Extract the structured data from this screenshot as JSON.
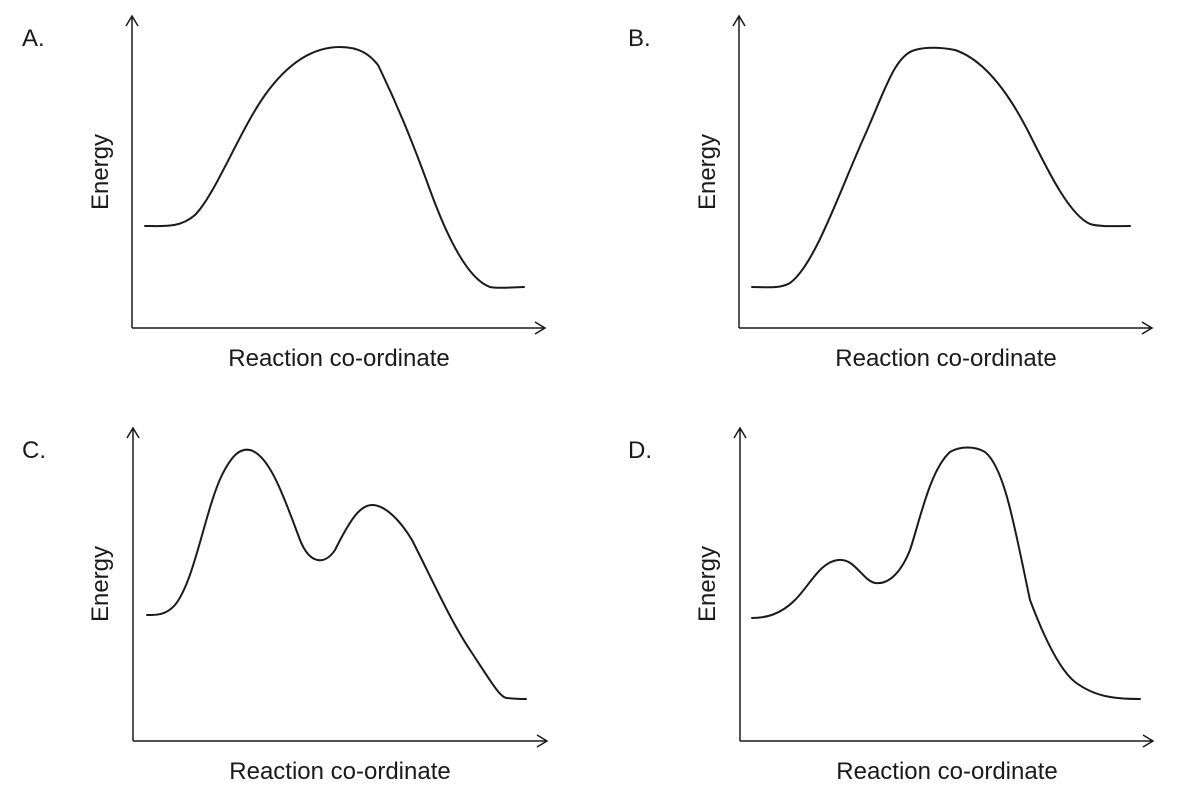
{
  "panels": [
    {
      "letter": "A.",
      "ylabel": "Energy",
      "xlabel": "Reaction co-ordinate"
    },
    {
      "letter": "B.",
      "ylabel": "Energy",
      "xlabel": "Reaction co-ordinate"
    },
    {
      "letter": "C.",
      "ylabel": "Energy",
      "xlabel": "Reaction co-ordinate"
    },
    {
      "letter": "D.",
      "ylabel": "Energy",
      "xlabel": "Reaction co-ordinate"
    }
  ]
}
